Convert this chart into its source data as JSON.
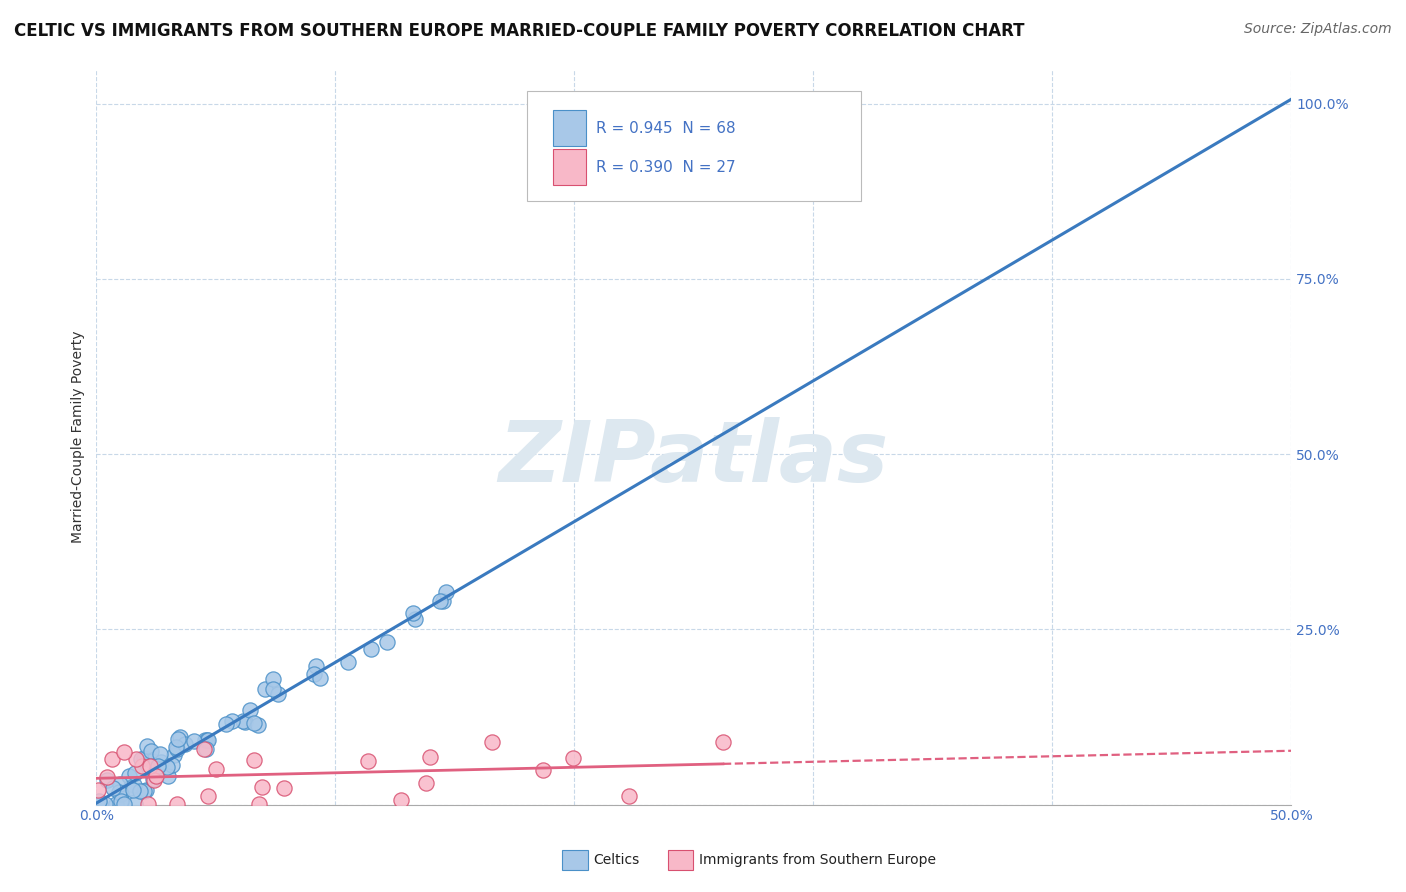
{
  "title": "CELTIC VS IMMIGRANTS FROM SOUTHERN EUROPE MARRIED-COUPLE FAMILY POVERTY CORRELATION CHART",
  "source": "Source: ZipAtlas.com",
  "ylabel": "Married-Couple Family Poverty",
  "ylim": [
    0,
    1.05
  ],
  "xlim": [
    0,
    0.5
  ],
  "ytick_values": [
    0.0,
    0.25,
    0.5,
    0.75,
    1.0
  ],
  "xtick_values": [
    0.0,
    0.1,
    0.2,
    0.3,
    0.4,
    0.5
  ],
  "legend1_text": "R = 0.945  N = 68",
  "legend2_text": "R = 0.390  N = 27",
  "celtics_color": "#a8c8e8",
  "celtics_edge": "#4a90c8",
  "immigrants_color": "#f8b8c8",
  "immigrants_edge": "#d85070",
  "regression_blue": "#3a7abf",
  "regression_pink": "#e06080",
  "background_color": "#ffffff",
  "grid_color": "#c8d8e8",
  "grid_style": "--",
  "watermark_text": "ZIPatlas",
  "watermark_color": "#dde8f0",
  "title_fontsize": 12,
  "source_fontsize": 10,
  "tick_color": "#4472c4",
  "tick_fontsize": 10,
  "ylabel_fontsize": 10,
  "ylabel_color": "#333333",
  "legend_R_color": "#4472c4",
  "legend_N_color": "#cc2200"
}
